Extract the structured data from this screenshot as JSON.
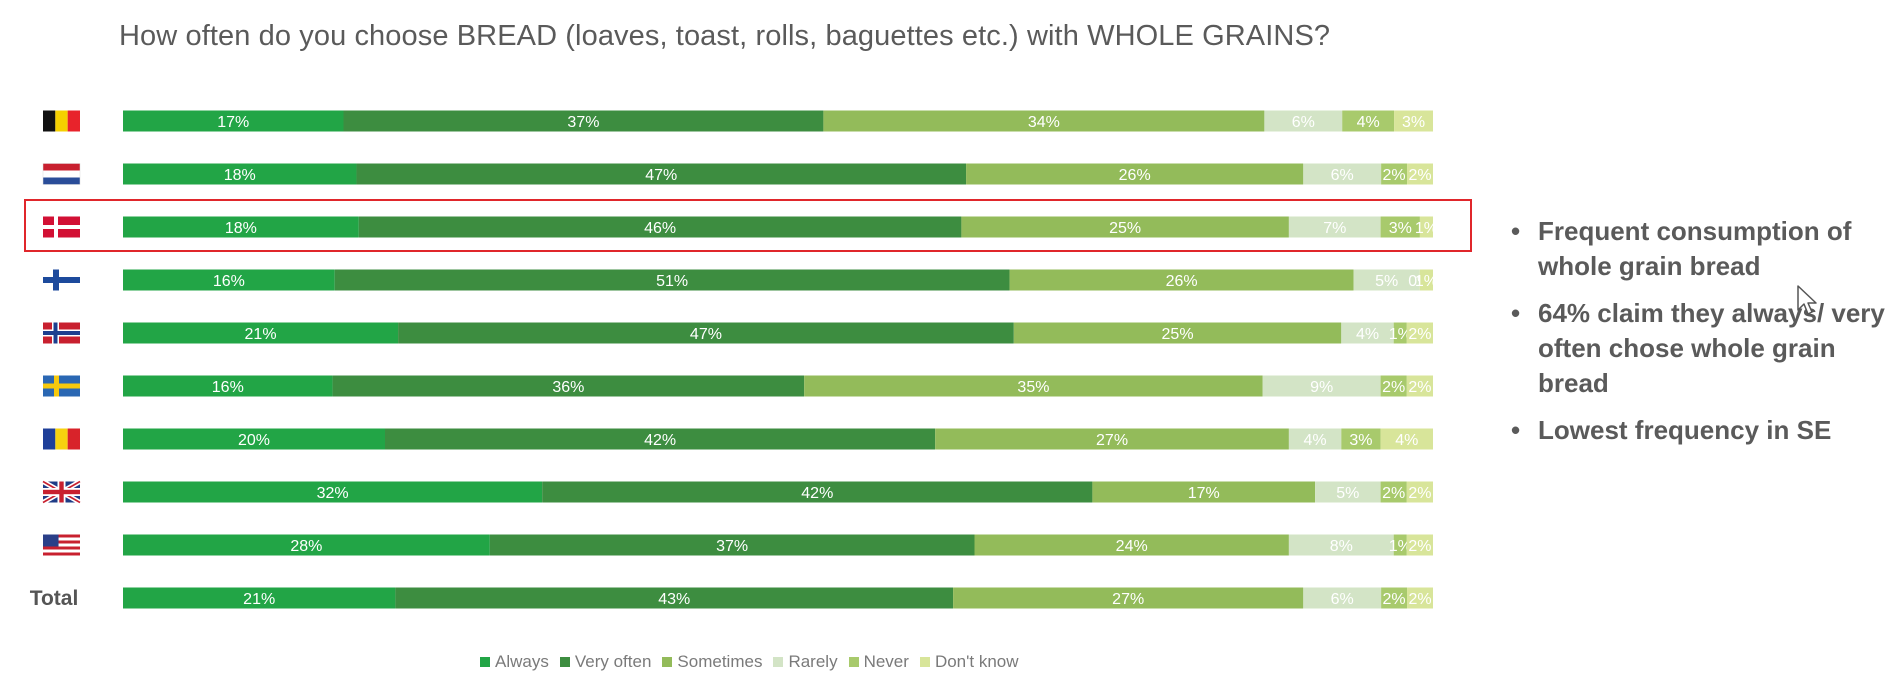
{
  "page": {
    "bullets": [
      "Frequent consumption of whole grain bread",
      "64% claim they always/ very often chose whole grain bread",
      "Lowest frequency in SE"
    ]
  },
  "chart_data": {
    "type": "bar",
    "orientation": "horizontal",
    "stacked": true,
    "percent_stacked": true,
    "title": "How often do you choose BREAD (loaves, toast, rolls, baguettes etc.) with WHOLE GRAINS?",
    "xlabel": "",
    "ylabel": "",
    "categories": [
      "Belgium",
      "Netherlands",
      "Denmark",
      "Finland",
      "Norway",
      "Sweden",
      "Romania",
      "United Kingdom",
      "United States",
      "Total"
    ],
    "category_display": [
      "flag-be",
      "flag-nl",
      "flag-dk",
      "flag-fi",
      "flag-no",
      "flag-se",
      "flag-ro",
      "flag-uk",
      "flag-us",
      "Total"
    ],
    "highlighted_category": "Denmark",
    "series": [
      {
        "name": "Always",
        "color": "#22a546",
        "values": [
          17,
          18,
          18,
          16,
          21,
          16,
          20,
          32,
          28,
          21
        ]
      },
      {
        "name": "Very often",
        "color": "#3d8d40",
        "values": [
          37,
          47,
          46,
          51,
          47,
          36,
          42,
          42,
          37,
          43
        ]
      },
      {
        "name": "Sometimes",
        "color": "#93bb5a",
        "values": [
          34,
          26,
          25,
          26,
          25,
          35,
          27,
          17,
          24,
          27
        ]
      },
      {
        "name": "Rarely",
        "color": "#d3e4c6",
        "values": [
          6,
          6,
          7,
          5,
          4,
          9,
          4,
          5,
          8,
          6
        ]
      },
      {
        "name": "Never",
        "color": "#a8ca6c",
        "values": [
          4,
          2,
          3,
          0,
          1,
          2,
          3,
          2,
          1,
          2
        ]
      },
      {
        "name": "Don't know",
        "color": "#d8e59a",
        "values": [
          3,
          2,
          1,
          1,
          2,
          2,
          4,
          2,
          2,
          2
        ]
      }
    ],
    "legend": "bottom",
    "grid": false,
    "xlim": [
      0,
      100
    ]
  }
}
